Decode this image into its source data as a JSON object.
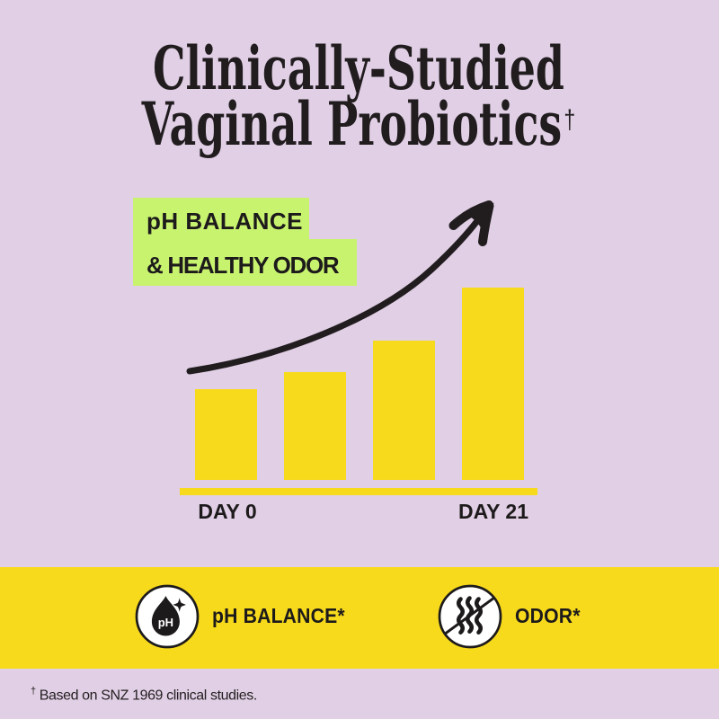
{
  "page": {
    "background_color": "#e1cfe5",
    "accent_yellow": "#f8da1c",
    "accent_green": "#c8f36f",
    "text_color": "#211d1f"
  },
  "title": {
    "line1": "Clinically-Studied",
    "line2": "Vaginal Probiotics",
    "dagger": "†"
  },
  "highlight": {
    "line1": "pH BALANCE",
    "line2": "& HEALTHY ODOR"
  },
  "chart_data": {
    "type": "bar",
    "title": "pH BALANCE & HEALTHY ODOR improvement over time",
    "categories": [
      "DAY 0",
      "",
      "",
      "DAY 21"
    ],
    "values": [
      47.2,
      56.1,
      72.4,
      100
    ],
    "ylabel": "",
    "xlabel": "",
    "ylim": [
      0,
      100
    ],
    "grid": false,
    "legend": false,
    "x_tick_labels": [
      "DAY 0",
      "DAY 21"
    ],
    "bar_color": "#f8da1c",
    "annotations": [
      "upward trend arrow"
    ]
  },
  "banner": {
    "items": [
      {
        "icon": "ph-droplet-icon",
        "icon_text": "pH",
        "label": "pH BALANCE*"
      },
      {
        "icon": "odor-crossed-icon",
        "label": "ODOR*"
      }
    ]
  },
  "footnote": {
    "dagger": "†",
    "text": "Based on SNZ 1969 clinical studies."
  }
}
